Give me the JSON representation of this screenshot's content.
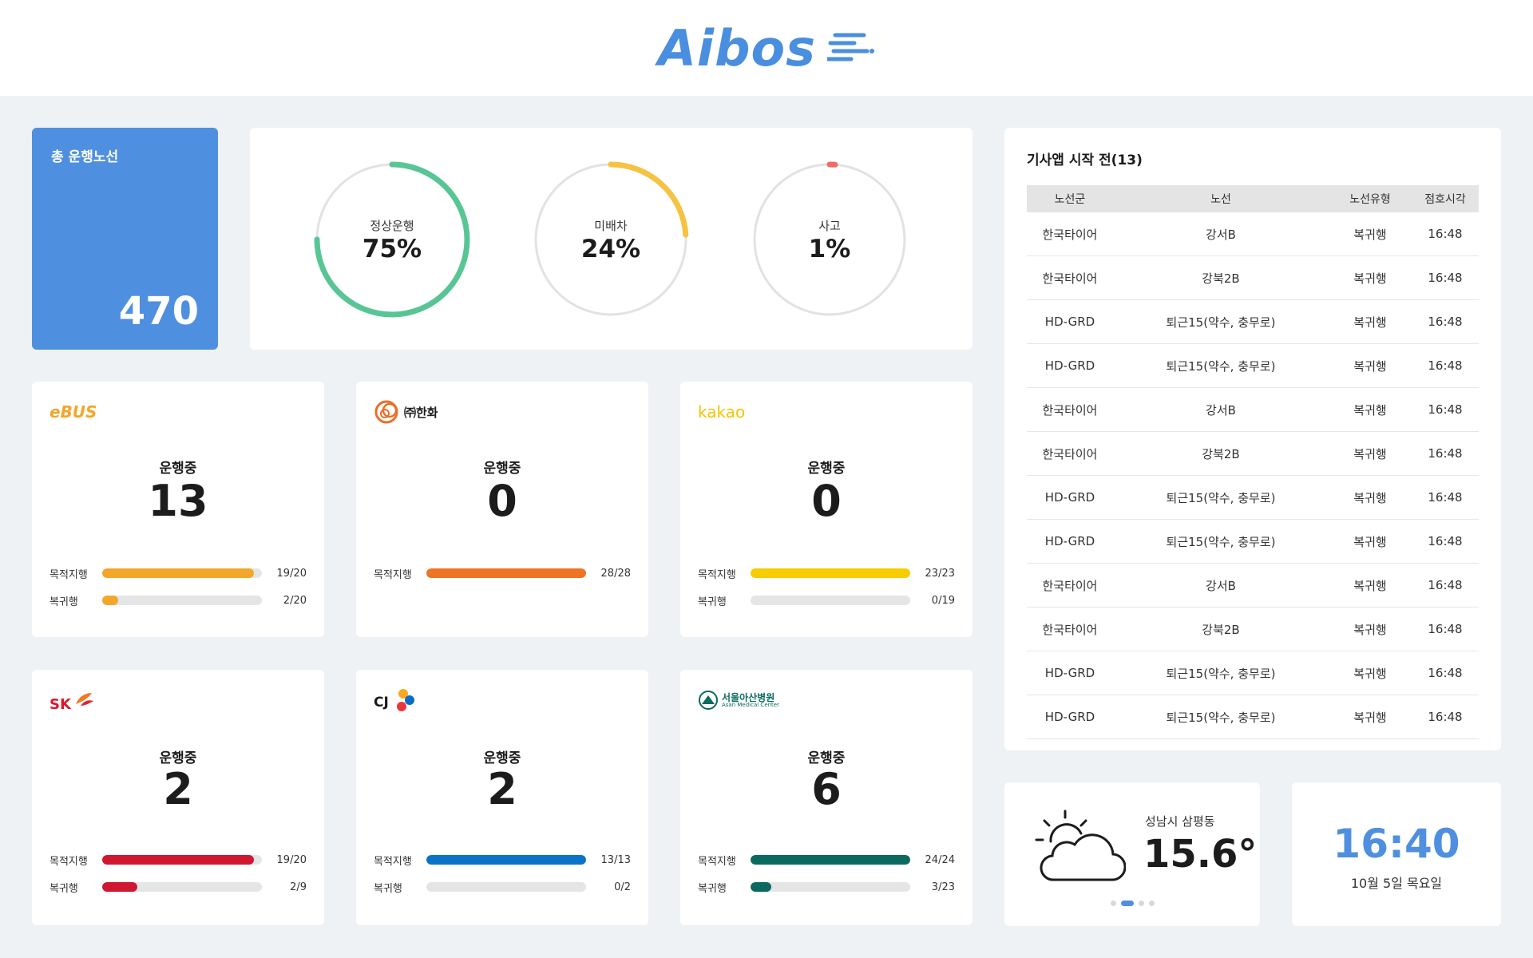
{
  "header": {
    "logo_text": "Aibos"
  },
  "total": {
    "label": "총 운행노선",
    "value": "470"
  },
  "status": [
    {
      "label": "정상운행",
      "value": "75%",
      "percent": 75,
      "color": "#58c595"
    },
    {
      "label": "미배차",
      "value": "24%",
      "percent": 24,
      "color": "#f5c342"
    },
    {
      "label": "사고",
      "value": "1%",
      "percent": 1,
      "color": "#ef6b6b"
    }
  ],
  "companies": [
    {
      "logo": "eBUS",
      "logo_color": "#f2a72b",
      "op_label": "운행중",
      "op_value": "13",
      "bars": [
        {
          "label": "목적지행",
          "count": "19/20",
          "ratio": 0.95,
          "color": "#f2a72b"
        },
        {
          "label": "복귀행",
          "count": "2/20",
          "ratio": 0.1,
          "color": "#f2a72b"
        }
      ]
    },
    {
      "logo": "㈜한화",
      "logo_color": "#e8702a",
      "op_label": "운행중",
      "op_value": "0",
      "bars": [
        {
          "label": "목적지행",
          "count": "28/28",
          "ratio": 1.0,
          "color": "#ec7424"
        }
      ]
    },
    {
      "logo": "kakao",
      "logo_color": "#f4c400",
      "op_label": "운행중",
      "op_value": "0",
      "bars": [
        {
          "label": "목적지행",
          "count": "23/23",
          "ratio": 1.0,
          "color": "#f7cc00"
        },
        {
          "label": "복귀행",
          "count": "0/19",
          "ratio": 0.0,
          "color": "#f7cc00"
        }
      ]
    },
    {
      "logo": "SK",
      "logo_color": "#d8182f",
      "op_label": "운행중",
      "op_value": "2",
      "bars": [
        {
          "label": "목적지행",
          "count": "19/20",
          "ratio": 0.95,
          "color": "#cf1731"
        },
        {
          "label": "복귀행",
          "count": "2/9",
          "ratio": 0.22,
          "color": "#cf1731"
        }
      ]
    },
    {
      "logo": "CJ",
      "logo_color": "#1a1a1a",
      "op_label": "운행중",
      "op_value": "2",
      "bars": [
        {
          "label": "목적지행",
          "count": "13/13",
          "ratio": 1.0,
          "color": "#0b73c7"
        },
        {
          "label": "복귀행",
          "count": "0/2",
          "ratio": 0.0,
          "color": "#0b73c7"
        }
      ]
    },
    {
      "logo": "서울아산병원",
      "logo_sub": "Asan Medical Center",
      "logo_color": "#0b6a5e",
      "op_label": "운행중",
      "op_value": "6",
      "bars": [
        {
          "label": "목적지행",
          "count": "24/24",
          "ratio": 1.0,
          "color": "#0b6a60"
        },
        {
          "label": "복귀행",
          "count": "3/23",
          "ratio": 0.13,
          "color": "#0b6a60"
        }
      ]
    }
  ],
  "table": {
    "title": "기사앱 시작 전(13)",
    "headers": [
      "노선군",
      "노선",
      "노선유형",
      "점호시각"
    ],
    "rows": [
      [
        "한국타이어",
        "강서B",
        "복귀행",
        "16:48"
      ],
      [
        "한국타이어",
        "강북2B",
        "복귀행",
        "16:48"
      ],
      [
        "HD-GRD",
        "퇴근15(약수, 충무로)",
        "복귀행",
        "16:48"
      ],
      [
        "HD-GRD",
        "퇴근15(약수, 충무로)",
        "복귀행",
        "16:48"
      ],
      [
        "한국타이어",
        "강서B",
        "복귀행",
        "16:48"
      ],
      [
        "한국타이어",
        "강북2B",
        "복귀행",
        "16:48"
      ],
      [
        "HD-GRD",
        "퇴근15(약수, 충무로)",
        "복귀행",
        "16:48"
      ],
      [
        "HD-GRD",
        "퇴근15(약수, 충무로)",
        "복귀행",
        "16:48"
      ],
      [
        "한국타이어",
        "강서B",
        "복귀행",
        "16:48"
      ],
      [
        "한국타이어",
        "강북2B",
        "복귀행",
        "16:48"
      ],
      [
        "HD-GRD",
        "퇴근15(약수, 충무로)",
        "복귀행",
        "16:48"
      ],
      [
        "HD-GRD",
        "퇴근15(약수, 충무로)",
        "복귀행",
        "16:48"
      ]
    ]
  },
  "weather": {
    "location": "성남시 삼평동",
    "temp": "15.6°",
    "icon": "partly-cloudy-icon",
    "pages": 4,
    "active_page": 1
  },
  "clock": {
    "time": "16:40",
    "date": "10월 5일 목요일"
  },
  "colors": {
    "accent": "#4f8fe0",
    "background": "#eef2f5"
  }
}
